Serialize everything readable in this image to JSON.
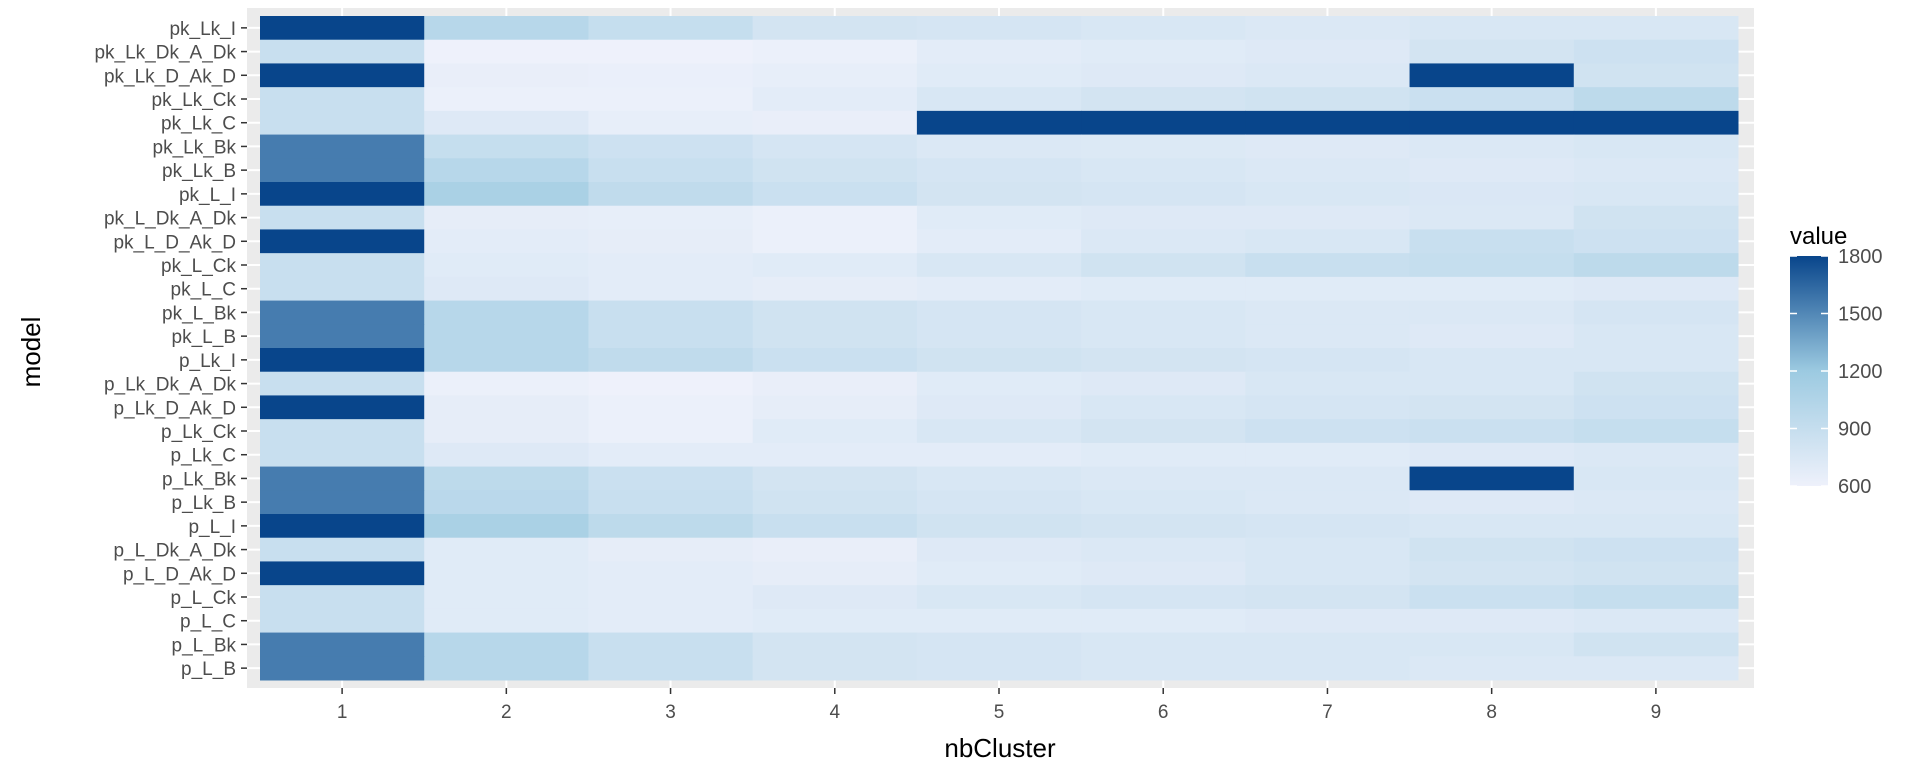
{
  "chart_data": {
    "type": "heatmap",
    "xlabel": "nbCluster",
    "ylabel": "model",
    "x_categories": [
      "1",
      "2",
      "3",
      "4",
      "5",
      "6",
      "7",
      "8",
      "9"
    ],
    "y_categories": [
      "pk_Lk_I",
      "pk_Lk_Dk_A_Dk",
      "pk_Lk_D_Ak_D",
      "pk_Lk_Ck",
      "pk_Lk_C",
      "pk_Lk_Bk",
      "pk_Lk_B",
      "pk_L_I",
      "pk_L_Dk_A_Dk",
      "pk_L_D_Ak_D",
      "pk_L_Ck",
      "pk_L_C",
      "pk_L_Bk",
      "pk_L_B",
      "p_Lk_I",
      "p_Lk_Dk_A_Dk",
      "p_Lk_D_Ak_D",
      "p_Lk_Ck",
      "p_Lk_C",
      "p_Lk_Bk",
      "p_Lk_B",
      "p_L_I",
      "p_L_Dk_A_Dk",
      "p_L_D_Ak_D",
      "p_L_Ck",
      "p_L_C",
      "p_L_Bk",
      "p_L_B"
    ],
    "values": [
      [
        1800,
        1000,
        900,
        800,
        780,
        760,
        740,
        760,
        760
      ],
      [
        880,
        600,
        590,
        620,
        680,
        700,
        720,
        800,
        840
      ],
      [
        1800,
        640,
        630,
        650,
        700,
        720,
        740,
        1800,
        820
      ],
      [
        880,
        620,
        620,
        680,
        760,
        800,
        820,
        860,
        960
      ],
      [
        880,
        720,
        650,
        640,
        1800,
        1800,
        1800,
        1800,
        1800
      ],
      [
        1550,
        900,
        840,
        780,
        740,
        730,
        720,
        740,
        760
      ],
      [
        1550,
        1000,
        880,
        820,
        780,
        760,
        740,
        720,
        740
      ],
      [
        1800,
        1100,
        940,
        860,
        800,
        780,
        760,
        750,
        760
      ],
      [
        880,
        660,
        650,
        620,
        700,
        720,
        720,
        740,
        820
      ],
      [
        1800,
        680,
        660,
        620,
        680,
        740,
        760,
        880,
        840
      ],
      [
        880,
        700,
        680,
        700,
        760,
        820,
        880,
        900,
        960
      ],
      [
        880,
        720,
        680,
        660,
        680,
        700,
        700,
        700,
        720
      ],
      [
        1550,
        1000,
        880,
        820,
        780,
        760,
        740,
        740,
        780
      ],
      [
        1550,
        1000,
        880,
        820,
        780,
        760,
        740,
        720,
        760
      ],
      [
        1800,
        1000,
        940,
        860,
        820,
        800,
        780,
        760,
        760
      ],
      [
        880,
        620,
        600,
        640,
        700,
        720,
        760,
        760,
        820
      ],
      [
        1800,
        660,
        620,
        660,
        720,
        760,
        780,
        800,
        840
      ],
      [
        880,
        660,
        620,
        700,
        760,
        800,
        840,
        860,
        900
      ],
      [
        880,
        720,
        680,
        680,
        680,
        700,
        700,
        720,
        740
      ],
      [
        1550,
        960,
        860,
        800,
        760,
        740,
        740,
        1800,
        760
      ],
      [
        1550,
        980,
        880,
        820,
        780,
        760,
        740,
        720,
        740
      ],
      [
        1800,
        1100,
        960,
        880,
        820,
        800,
        780,
        760,
        760
      ],
      [
        880,
        700,
        660,
        640,
        720,
        740,
        760,
        820,
        840
      ],
      [
        1800,
        700,
        680,
        660,
        700,
        720,
        760,
        800,
        820
      ],
      [
        880,
        700,
        680,
        720,
        760,
        780,
        800,
        860,
        900
      ],
      [
        880,
        700,
        680,
        700,
        700,
        700,
        720,
        720,
        740
      ],
      [
        1550,
        1000,
        880,
        800,
        780,
        760,
        760,
        760,
        820
      ],
      [
        1550,
        1000,
        880,
        800,
        780,
        760,
        760,
        740,
        740
      ]
    ],
    "legend": {
      "title": "value",
      "position": "right",
      "ticks": [
        1800,
        1500,
        1200,
        900,
        600
      ],
      "range": [
        600,
        1800
      ]
    },
    "color_scale": {
      "low": "#eef1fb",
      "mid": "#9ccae1",
      "high": "#08458b"
    },
    "panel_background": "#ebebeb",
    "grid": true
  }
}
